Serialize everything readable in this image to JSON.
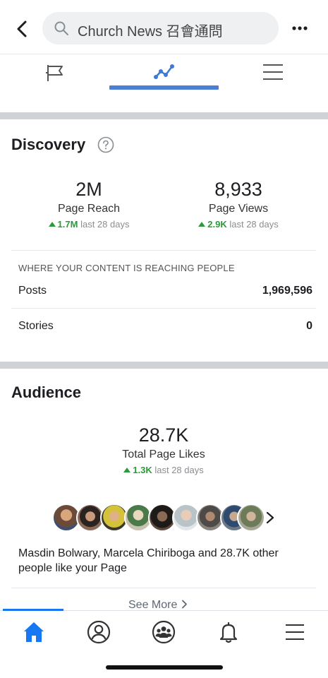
{
  "header": {
    "search_text": "Church News 召會通問",
    "icons": {
      "back": "back-arrow-icon",
      "search": "search-icon",
      "more": "more-dots-icon"
    }
  },
  "tabs": [
    {
      "name": "page-tab",
      "icon": "flag-icon",
      "active": false
    },
    {
      "name": "insights-tab",
      "icon": "insights-line-icon",
      "active": true
    },
    {
      "name": "menu-tab",
      "icon": "hamburger-icon",
      "active": false
    }
  ],
  "discovery": {
    "title": "Discovery",
    "metrics": [
      {
        "value": "2M",
        "label": "Page Reach",
        "delta": "1.7M",
        "period": "last 28 days"
      },
      {
        "value": "8,933",
        "label": "Page Views",
        "delta": "2.9K",
        "period": "last 28 days"
      }
    ],
    "reach_heading": "WHERE YOUR CONTENT IS REACHING PEOPLE",
    "reach_rows": [
      {
        "label": "Posts",
        "value": "1,969,596"
      },
      {
        "label": "Stories",
        "value": "0"
      }
    ]
  },
  "audience": {
    "title": "Audience",
    "likes_value": "28.7K",
    "likes_label": "Total Page Likes",
    "likes_delta": "1.3K",
    "likes_period": "last 28 days",
    "avatar_count": 9,
    "likers_text": "Masdin Bolwary, Marcela Chiriboga and 28.7K other people like your Page",
    "see_more_label": "See More"
  },
  "bottom_nav": [
    {
      "icon": "home-icon",
      "active": true
    },
    {
      "icon": "profile-icon",
      "active": false
    },
    {
      "icon": "groups-icon",
      "active": false
    },
    {
      "icon": "bell-icon",
      "active": false
    },
    {
      "icon": "menu-icon",
      "active": false
    }
  ],
  "colors": {
    "accent": "#1877f2",
    "tab_underline": "#4a7fd8",
    "positive": "#2c9a3a",
    "muted": "#8a8d91",
    "divider": "#cfd3d8"
  }
}
